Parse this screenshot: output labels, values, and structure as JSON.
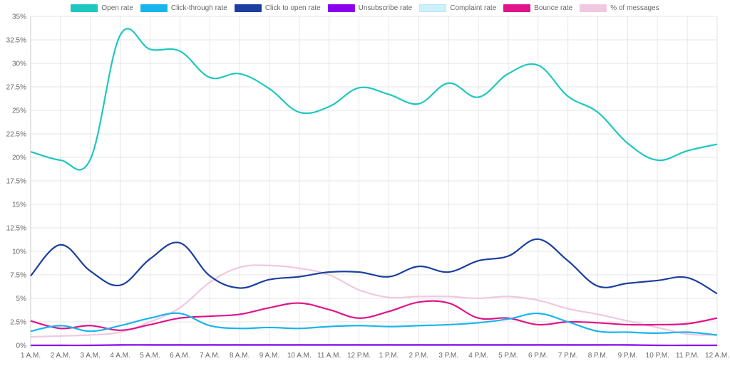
{
  "chart_data": {
    "type": "line",
    "categories": [
      "1 A.M.",
      "2 A.M.",
      "3 A.M.",
      "4 A.M.",
      "5 A.M.",
      "6 A.M.",
      "7 A.M.",
      "8 A.M.",
      "9 A.M.",
      "10 A.M.",
      "11 A.M.",
      "12 P.M.",
      "1 P.M.",
      "2 P.M.",
      "3 P.M.",
      "4 P.M.",
      "5 P.M.",
      "6 P.M.",
      "7 P.M.",
      "8 P.M.",
      "9 P.M.",
      "10 P.M.",
      "11 P.M.",
      "12 A.M."
    ],
    "ylim": [
      0,
      35
    ],
    "yticks": [
      "0%",
      "2.5%",
      "5%",
      "7.5%",
      "10%",
      "12.5%",
      "15%",
      "17.5%",
      "20%",
      "22.5%",
      "25%",
      "27.5%",
      "30%",
      "32.5%",
      "35%"
    ],
    "ytick_values": [
      0,
      2.5,
      5,
      7.5,
      10,
      12.5,
      15,
      17.5,
      20,
      22.5,
      25,
      27.5,
      30,
      32.5,
      35
    ],
    "grid": true,
    "legend_position": "top",
    "series": [
      {
        "name": "Open rate",
        "color": "#1ec8c0",
        "values": [
          20.6,
          19.7,
          19.8,
          33.0,
          31.5,
          31.3,
          28.5,
          28.9,
          27.3,
          24.8,
          25.4,
          27.4,
          26.7,
          25.7,
          27.9,
          26.4,
          28.9,
          29.8,
          26.5,
          24.8,
          21.5,
          19.7,
          20.7,
          21.4
        ]
      },
      {
        "name": "Click-through rate",
        "color": "#19b4ee",
        "values": [
          1.5,
          2.1,
          1.5,
          2.1,
          2.9,
          3.4,
          2.1,
          1.8,
          1.9,
          1.8,
          2.0,
          2.1,
          2.0,
          2.1,
          2.2,
          2.4,
          2.8,
          3.4,
          2.5,
          1.5,
          1.4,
          1.3,
          1.4,
          1.1
        ]
      },
      {
        "name": "Click to open rate",
        "color": "#1a3fa0",
        "values": [
          7.4,
          10.7,
          7.9,
          6.4,
          9.2,
          10.9,
          7.4,
          6.1,
          7.0,
          7.3,
          7.8,
          7.8,
          7.3,
          8.4,
          7.8,
          9.0,
          9.5,
          11.3,
          9.0,
          6.3,
          6.6,
          6.9,
          7.2,
          5.5
        ]
      },
      {
        "name": "Unsubscribe rate",
        "color": "#8b00ee",
        "values": [
          0.0,
          0.0,
          0.0,
          0.05,
          0.05,
          0.05,
          0.05,
          0.05,
          0.05,
          0.05,
          0.05,
          0.05,
          0.05,
          0.05,
          0.05,
          0.05,
          0.05,
          0.05,
          0.05,
          0.05,
          0.05,
          0.0,
          0.0,
          0.0
        ]
      },
      {
        "name": "Complaint rate",
        "color": "#cdf0fb",
        "values": [
          0,
          0,
          0,
          0,
          0,
          0,
          0,
          0,
          0,
          0,
          0,
          0,
          0,
          0,
          0,
          0,
          0,
          0,
          0,
          0,
          0,
          0,
          0,
          0
        ]
      },
      {
        "name": "Bounce rate",
        "color": "#e0148c",
        "values": [
          2.6,
          1.8,
          2.1,
          1.6,
          2.2,
          2.9,
          3.1,
          3.3,
          4.0,
          4.5,
          3.8,
          2.9,
          3.6,
          4.6,
          4.5,
          2.9,
          2.9,
          2.2,
          2.5,
          2.4,
          2.2,
          2.2,
          2.3,
          2.9
        ]
      },
      {
        "name": "% of messages",
        "color": "#f0c8e0",
        "values": [
          0.9,
          1.0,
          1.1,
          1.4,
          2.5,
          4.0,
          6.7,
          8.3,
          8.5,
          8.2,
          7.5,
          5.9,
          5.1,
          5.2,
          5.2,
          5.0,
          5.2,
          4.8,
          3.9,
          3.3,
          2.6,
          1.9,
          1.2,
          1.1
        ]
      }
    ]
  }
}
